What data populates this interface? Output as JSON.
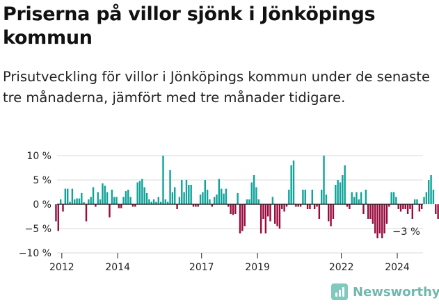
{
  "title": "Priserna på villor sjönk i Jönköpings kommun",
  "subtitle": "Prisutveckling för villor i Jönköpings kommun under de senaste tre månaderna, jämfört med tre månader tidigare.",
  "brand": "Newsworthy",
  "colors": {
    "positive": "#0fa39a",
    "negative": "#980b3c",
    "grid": "#d9d9d9",
    "zero": "#111111"
  },
  "chart_data": {
    "type": "bar",
    "y_ticks": [
      -10,
      -5,
      0,
      5,
      10
    ],
    "y_tick_labels": [
      "−10 %",
      "−5 %",
      "0 %",
      "5 %",
      "10 %"
    ],
    "ylim": [
      -10,
      10
    ],
    "x_ticks": [
      2012,
      2014,
      2017,
      2019,
      2022,
      2024
    ],
    "x_range": [
      2011.83,
      2024.92
    ],
    "end_label": "−3 %",
    "grid": true,
    "series": [
      {
        "start": [
          2011,
          10
        ],
        "values": [
          -3.5,
          -5.5,
          1,
          -1.5,
          3.2,
          3.2,
          0.5,
          3.2,
          1,
          1.2,
          1.2,
          2.3,
          0.4,
          -3.5,
          1,
          1.5,
          3.5,
          -0.5,
          2.5,
          1,
          4.3,
          3.8,
          2.5,
          -2.7,
          3,
          1.5,
          1.5,
          -0.8,
          -0.8,
          1.5,
          2.7,
          3,
          1.5,
          -0.5,
          -0.5,
          4.5,
          4.8,
          5.2,
          3.5,
          2.3,
          1,
          0.5,
          1,
          0.5,
          1.5,
          0.5,
          10,
          1,
          0.5,
          7,
          2.5,
          3.5,
          -1,
          1.5,
          5,
          2.5,
          5,
          4,
          4,
          -0.5,
          -0.5,
          -0.5,
          2,
          2.5,
          5,
          3,
          1,
          -0.5,
          1.5,
          2,
          5.2,
          3.2,
          2.2,
          3.2,
          -0.5,
          -2,
          -2.2,
          -2,
          2.3,
          -6,
          -5.5,
          -4.5,
          1,
          1,
          4.5,
          6,
          3.5,
          1,
          -6,
          -3,
          -6,
          -2.5,
          -3.5,
          1.5,
          -4,
          -4.5,
          -5,
          -1,
          -1.5,
          -0.5,
          3,
          8,
          9,
          -0.5,
          -0.5,
          -0.5,
          3,
          3,
          -1,
          -1,
          3,
          -1,
          -0.5,
          -3,
          3,
          10,
          2,
          -3.5,
          -4.5,
          -3,
          4,
          5,
          4.5,
          6,
          8,
          -0.5,
          -1,
          2.5,
          1.5,
          2.5,
          1,
          2.5,
          -2,
          3,
          -3,
          -3,
          -4,
          -6,
          -7,
          -6,
          -7,
          -6,
          -4,
          -0.5,
          2.5,
          2.5,
          1.5,
          -1,
          -1.5,
          -1,
          -1,
          -2,
          -1,
          -3,
          1,
          1,
          -1.5,
          -1,
          1.5,
          2.5,
          5,
          6,
          3,
          -2,
          -3
        ]
      }
    ]
  }
}
